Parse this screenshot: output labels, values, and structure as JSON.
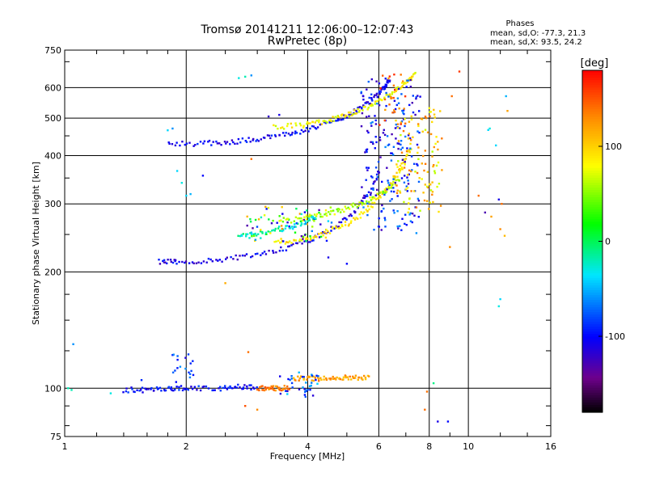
{
  "chart_data": {
    "type": "scatter",
    "title": "Tromsø 20141211 12:06:00–12:07:43",
    "subtitle": "RwPretec (8p)",
    "xlabel": "Frequency [MHz]",
    "ylabel": "Stationary phase Virtual Height [km]",
    "x_scale": "log",
    "y_scale": "log",
    "xlim": [
      1,
      16
    ],
    "ylim": [
      75,
      750
    ],
    "x_ticks": [
      1,
      2,
      4,
      6,
      8,
      10,
      16
    ],
    "x_tick_labels": [
      "1",
      "2",
      "4",
      "6",
      "8",
      "10",
      "16"
    ],
    "y_ticks": [
      75,
      100,
      200,
      300,
      400,
      500,
      600,
      750
    ],
    "y_tick_labels": [
      "75",
      "100",
      "200",
      "300",
      "400",
      "500",
      "600",
      "750"
    ],
    "grid": true,
    "phase_info": {
      "title": "Phases",
      "line_o": "mean, sd,O: -77.3, 21.3",
      "line_x": "mean, sd,X:  93.5, 24.2"
    },
    "colorbar": {
      "label": "[deg]",
      "range": [
        -180,
        180
      ],
      "ticks": [
        100,
        0,
        -100
      ],
      "tick_labels": [
        "100",
        "0",
        "-100"
      ]
    },
    "traces": [
      {
        "kind": "curve",
        "x": [
          1.72,
          1.9,
          2.3,
          2.8,
          3.4,
          4.0,
          4.6,
          5.2,
          5.7,
          6.05
        ],
        "y": [
          213,
          212,
          214,
          219,
          228,
          241,
          258,
          285,
          320,
          370
        ],
        "phase": -110
      },
      {
        "kind": "curve",
        "x": [
          1.8,
          2.2,
          2.6,
          3.0,
          3.5,
          4.0,
          4.6,
          5.2,
          5.7,
          6.1,
          6.4
        ],
        "y": [
          428,
          430,
          434,
          441,
          453,
          468,
          489,
          517,
          550,
          590,
          630
        ],
        "phase": -105
      },
      {
        "kind": "curve",
        "x": [
          3.3,
          3.8,
          4.3,
          4.9,
          5.5,
          6.0,
          6.5,
          6.9,
          7.2
        ],
        "y": [
          238,
          242,
          250,
          263,
          283,
          310,
          345,
          380,
          420
        ],
        "phase": 90
      },
      {
        "kind": "curve",
        "x": [
          3.4,
          4.0,
          4.5,
          5.0,
          5.6,
          6.2,
          6.8
        ],
        "y": [
          270,
          275,
          282,
          292,
          305,
          325,
          350
        ],
        "phase": 60
      },
      {
        "kind": "curve",
        "x": [
          3.3,
          3.9,
          4.4,
          4.9,
          5.4,
          6.0,
          6.6,
          7.0,
          7.4
        ],
        "y": [
          474,
          480,
          490,
          505,
          525,
          553,
          590,
          620,
          650
        ],
        "phase": 80
      },
      {
        "kind": "curve",
        "x": [
          2.7,
          3.0,
          3.4,
          3.8,
          4.2
        ],
        "y": [
          246,
          250,
          256,
          265,
          278
        ],
        "phase": -20
      },
      {
        "kind": "curve",
        "x": [
          1.4,
          1.6,
          1.8,
          2.0,
          2.4,
          2.7,
          3.0
        ],
        "y": [
          99,
          99,
          100,
          100,
          100,
          101,
          100
        ],
        "phase": -100
      },
      {
        "kind": "curve",
        "x": [
          3.0,
          3.2,
          3.4,
          3.6
        ],
        "y": [
          100,
          100,
          100,
          100
        ],
        "phase": 135
      },
      {
        "kind": "curve",
        "x": [
          3.7,
          4.0,
          4.4,
          4.8,
          5.2,
          5.7
        ],
        "y": [
          106,
          106,
          106,
          106,
          107,
          106
        ],
        "phase": 120
      }
    ],
    "clusters": [
      {
        "x": [
          5.4,
          7.6
        ],
        "y": [
          250,
          640
        ],
        "phase_range": [
          -130,
          -60
        ],
        "n": 200
      },
      {
        "x": [
          6.6,
          8.6
        ],
        "y": [
          280,
          540
        ],
        "phase_range": [
          60,
          140
        ],
        "n": 110
      },
      {
        "x": [
          6.0,
          7.0
        ],
        "y": [
          480,
          660
        ],
        "phase_range": [
          120,
          170
        ],
        "n": 25
      },
      {
        "x": [
          3.4,
          4.3
        ],
        "y": [
          95,
          110
        ],
        "phase_range": [
          -120,
          -40
        ],
        "n": 35
      },
      {
        "x": [
          1.8,
          2.15
        ],
        "y": [
          100,
          125
        ],
        "phase_range": [
          -120,
          -60
        ],
        "n": 20
      },
      {
        "x": [
          2.8,
          4.6
        ],
        "y": [
          240,
          295
        ],
        "phase_range": [
          -140,
          130
        ],
        "n": 80
      }
    ],
    "points": [
      {
        "x": 1.02,
        "y": 100,
        "phase": -20
      },
      {
        "x": 1.04,
        "y": 99,
        "phase": -20
      },
      {
        "x": 1.05,
        "y": 130,
        "phase": -60
      },
      {
        "x": 1.3,
        "y": 97,
        "phase": -30
      },
      {
        "x": 1.55,
        "y": 105,
        "phase": -90
      },
      {
        "x": 1.85,
        "y": 470,
        "phase": -60
      },
      {
        "x": 1.8,
        "y": 465,
        "phase": -40
      },
      {
        "x": 1.9,
        "y": 365,
        "phase": -40
      },
      {
        "x": 1.95,
        "y": 340,
        "phase": -30
      },
      {
        "x": 2.0,
        "y": 315,
        "phase": -40
      },
      {
        "x": 2.05,
        "y": 318,
        "phase": -50
      },
      {
        "x": 2.2,
        "y": 355,
        "phase": -100
      },
      {
        "x": 2.5,
        "y": 187,
        "phase": 115
      },
      {
        "x": 2.8,
        "y": 640,
        "phase": -20
      },
      {
        "x": 2.9,
        "y": 645,
        "phase": -60
      },
      {
        "x": 2.7,
        "y": 635,
        "phase": -30
      },
      {
        "x": 2.9,
        "y": 392,
        "phase": 140
      },
      {
        "x": 2.8,
        "y": 90,
        "phase": 150
      },
      {
        "x": 3.0,
        "y": 88,
        "phase": 130
      },
      {
        "x": 2.85,
        "y": 124,
        "phase": 140
      },
      {
        "x": 4.5,
        "y": 218,
        "phase": -110
      },
      {
        "x": 5.0,
        "y": 210,
        "phase": -100
      },
      {
        "x": 3.2,
        "y": 505,
        "phase": -120
      },
      {
        "x": 3.4,
        "y": 510,
        "phase": -110
      },
      {
        "x": 8.2,
        "y": 103,
        "phase": -10
      },
      {
        "x": 7.8,
        "y": 88,
        "phase": 140
      },
      {
        "x": 7.9,
        "y": 98,
        "phase": 140
      },
      {
        "x": 8.4,
        "y": 82,
        "phase": -110
      },
      {
        "x": 8.9,
        "y": 82,
        "phase": -100
      },
      {
        "x": 9.0,
        "y": 232,
        "phase": 130
      },
      {
        "x": 9.5,
        "y": 660,
        "phase": 160
      },
      {
        "x": 9.1,
        "y": 570,
        "phase": 140
      },
      {
        "x": 8.6,
        "y": 367,
        "phase": 120
      },
      {
        "x": 10.6,
        "y": 315,
        "phase": 140
      },
      {
        "x": 11.0,
        "y": 285,
        "phase": -130
      },
      {
        "x": 11.4,
        "y": 278,
        "phase": 120
      },
      {
        "x": 11.9,
        "y": 308,
        "phase": -110
      },
      {
        "x": 12.1,
        "y": 300,
        "phase": 140
      },
      {
        "x": 12.0,
        "y": 258,
        "phase": 130
      },
      {
        "x": 12.3,
        "y": 248,
        "phase": 110
      },
      {
        "x": 12.0,
        "y": 170,
        "phase": -40
      },
      {
        "x": 11.9,
        "y": 163,
        "phase": -30
      },
      {
        "x": 12.4,
        "y": 570,
        "phase": -50
      },
      {
        "x": 12.5,
        "y": 522,
        "phase": 120
      },
      {
        "x": 11.2,
        "y": 466,
        "phase": -40
      },
      {
        "x": 11.3,
        "y": 470,
        "phase": -30
      },
      {
        "x": 11.7,
        "y": 425,
        "phase": -40
      }
    ]
  }
}
